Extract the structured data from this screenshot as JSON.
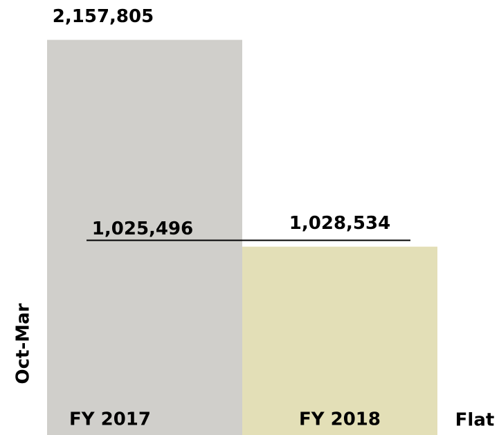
{
  "chart_data": {
    "type": "bar",
    "categories": [
      "FY 2017",
      "FY 2018"
    ],
    "values": [
      2157805,
      1028534
    ],
    "value_labels": [
      "2,157,805",
      "1,028,534"
    ],
    "colors": [
      "#d0cfcb",
      "#e3dfb7"
    ],
    "ylim": [
      0,
      2300000
    ],
    "reference_line": {
      "value": 1025496,
      "label": "1,025,496",
      "color": "#000000"
    },
    "ylabel": "Oct-Mar",
    "annotation": "Flat"
  }
}
